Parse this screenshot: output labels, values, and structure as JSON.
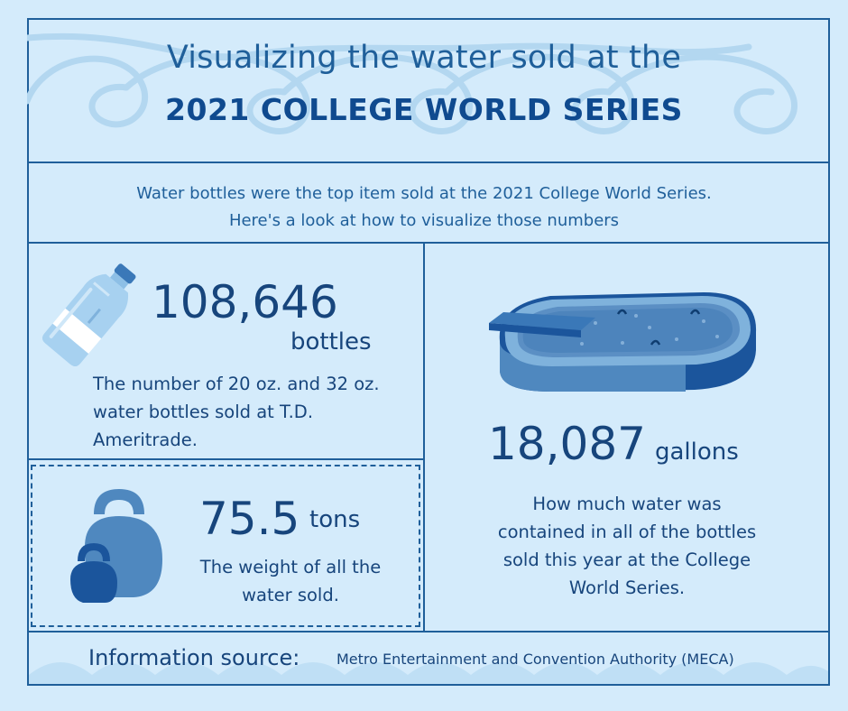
{
  "header": {
    "title_line1": "Visualizing the water sold at the",
    "title_line2": "2021 COLLEGE WORLD SERIES"
  },
  "intro": {
    "line1": "Water bottles were the top item sold at the 2021 College World Series.",
    "line2": "Here's a look at how to visualize those numbers"
  },
  "bottles": {
    "value": "108,646",
    "unit": "bottles",
    "desc_line1": "The number of 20 oz. and 32 oz.",
    "desc_line2": "water bottles sold at T.D.",
    "desc_line3": "Ameritrade."
  },
  "weight": {
    "value": "75.5",
    "unit": "tons",
    "desc_line1": "The weight of all the",
    "desc_line2": "water sold."
  },
  "gallons": {
    "value": "18,087",
    "unit": "gallons",
    "desc_line1": "How much water was",
    "desc_line2": "contained in all of the bottles",
    "desc_line3": "sold this year at the College",
    "desc_line4": "World Series."
  },
  "source": {
    "label": "Information source:",
    "text": "Metro Entertainment and Convention Authority (MECA)"
  },
  "icons": {
    "bottle": "water-bottle-icon",
    "kettlebells": "kettlebell-icon",
    "pool": "swimming-pool-icon",
    "waves": "wave-decoration"
  },
  "colors": {
    "background": "#d4ebfb",
    "border": "#1f5f9a",
    "text_dark": "#17457c",
    "title_bold": "#0f4a8f"
  }
}
